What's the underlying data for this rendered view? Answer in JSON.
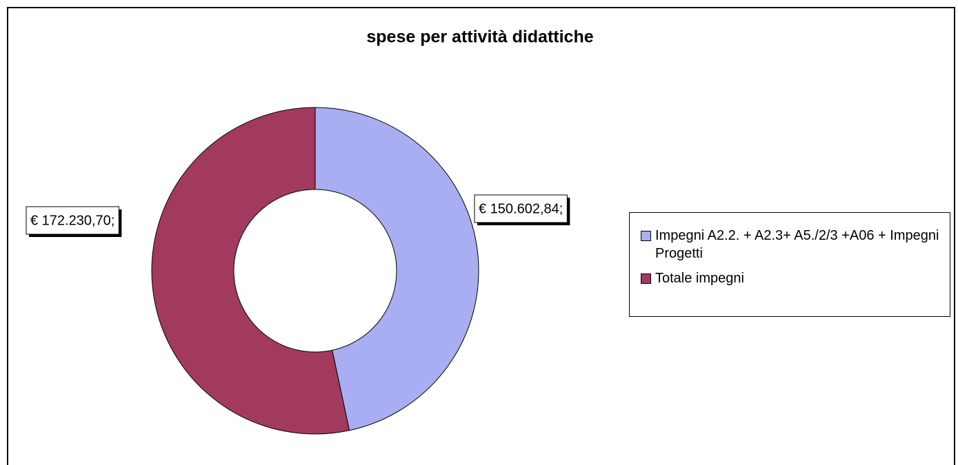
{
  "chart_data": {
    "type": "donut",
    "title": "spese per attività didattiche",
    "categories": [
      "Impegni A2.2. + A2.3+ A5./2/3 +A06 + Impegni Progetti",
      "Totale impegni"
    ],
    "values": [
      150602.84,
      172230.7
    ],
    "value_labels": [
      "€ 150.602,84;",
      "€ 172.230,70;"
    ],
    "colors": [
      "#a9aef2",
      "#a23a60"
    ],
    "legend": "right"
  }
}
